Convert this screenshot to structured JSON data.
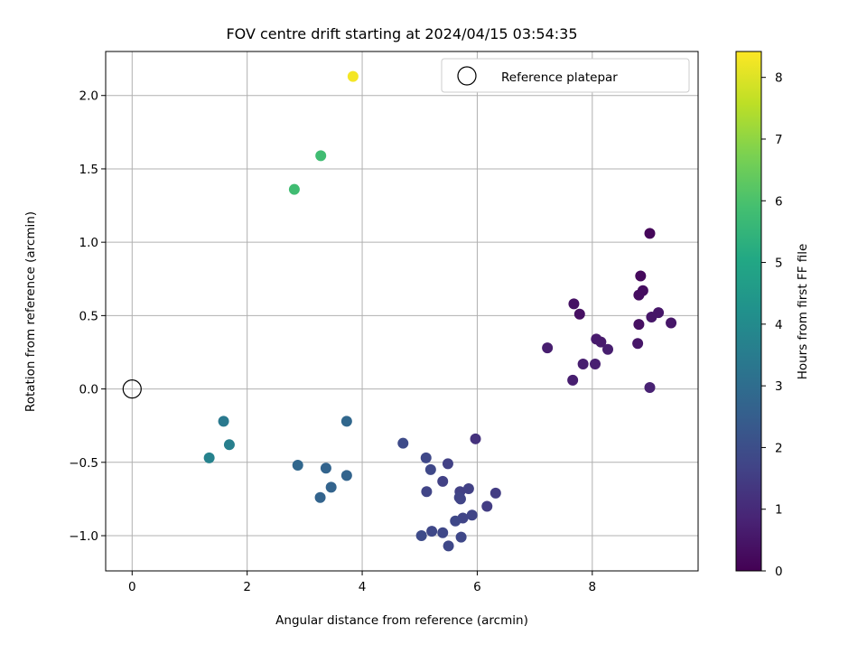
{
  "chart_data": {
    "type": "scatter",
    "title": "FOV centre drift starting at 2024/04/15 03:54:35",
    "xlabel": "Angular distance from reference (arcmin)",
    "ylabel": "Rotation from reference (arcmin)",
    "xlim": [
      -0.46,
      9.84
    ],
    "ylim": [
      -1.24,
      2.3
    ],
    "xticks": [
      0,
      2,
      4,
      6,
      8
    ],
    "xtick_labels": [
      "0",
      "2",
      "4",
      "6",
      "8"
    ],
    "yticks": [
      -1.0,
      -0.5,
      0.0,
      0.5,
      1.0,
      1.5,
      2.0
    ],
    "ytick_labels": [
      "−1.0",
      "−0.5",
      "0.0",
      "0.5",
      "1.0",
      "1.5",
      "2.0"
    ],
    "grid": true,
    "legend": {
      "placement": "top-right",
      "entries": [
        "Reference platepar"
      ]
    },
    "reference": {
      "x": 0.0,
      "y": 0.0,
      "label": "Reference platepar"
    },
    "colorbar": {
      "label": "Hours from first FF file",
      "colormap": "viridis",
      "range": [
        0,
        8.42
      ],
      "ticks": [
        0,
        1,
        2,
        3,
        4,
        5,
        6,
        7,
        8
      ],
      "tick_labels": [
        "0",
        "1",
        "2",
        "3",
        "4",
        "5",
        "6",
        "7",
        "8"
      ]
    },
    "points": [
      {
        "x": 9.0,
        "y": 1.06,
        "c": 0.15
      },
      {
        "x": 8.84,
        "y": 0.77,
        "c": 0.2
      },
      {
        "x": 8.88,
        "y": 0.67,
        "c": 0.3
      },
      {
        "x": 8.81,
        "y": 0.64,
        "c": 0.3
      },
      {
        "x": 7.68,
        "y": 0.58,
        "c": 0.4
      },
      {
        "x": 7.78,
        "y": 0.51,
        "c": 0.35
      },
      {
        "x": 9.15,
        "y": 0.52,
        "c": 0.5
      },
      {
        "x": 9.03,
        "y": 0.49,
        "c": 0.5
      },
      {
        "x": 9.37,
        "y": 0.45,
        "c": 0.5
      },
      {
        "x": 8.81,
        "y": 0.44,
        "c": 0.35
      },
      {
        "x": 8.07,
        "y": 0.34,
        "c": 0.6
      },
      {
        "x": 8.15,
        "y": 0.32,
        "c": 0.6
      },
      {
        "x": 8.79,
        "y": 0.31,
        "c": 0.5
      },
      {
        "x": 7.22,
        "y": 0.28,
        "c": 0.7
      },
      {
        "x": 8.27,
        "y": 0.27,
        "c": 0.7
      },
      {
        "x": 7.84,
        "y": 0.17,
        "c": 0.7
      },
      {
        "x": 8.05,
        "y": 0.17,
        "c": 0.75
      },
      {
        "x": 7.66,
        "y": 0.06,
        "c": 0.7
      },
      {
        "x": 9.0,
        "y": 0.01,
        "c": 0.8
      },
      {
        "x": 5.97,
        "y": -0.34,
        "c": 1.2
      },
      {
        "x": 4.71,
        "y": -0.37,
        "c": 1.9
      },
      {
        "x": 5.11,
        "y": -0.47,
        "c": 1.8
      },
      {
        "x": 5.49,
        "y": -0.51,
        "c": 1.6
      },
      {
        "x": 5.19,
        "y": -0.55,
        "c": 1.8
      },
      {
        "x": 5.4,
        "y": -0.63,
        "c": 1.6
      },
      {
        "x": 5.12,
        "y": -0.7,
        "c": 1.7
      },
      {
        "x": 5.7,
        "y": -0.7,
        "c": 1.6
      },
      {
        "x": 5.85,
        "y": -0.68,
        "c": 1.6
      },
      {
        "x": 6.32,
        "y": -0.71,
        "c": 1.5
      },
      {
        "x": 5.69,
        "y": -0.74,
        "c": 1.7
      },
      {
        "x": 5.71,
        "y": -0.75,
        "c": 1.7
      },
      {
        "x": 6.17,
        "y": -0.8,
        "c": 1.5
      },
      {
        "x": 5.75,
        "y": -0.88,
        "c": 1.7
      },
      {
        "x": 5.91,
        "y": -0.86,
        "c": 1.7
      },
      {
        "x": 5.62,
        "y": -0.9,
        "c": 1.8
      },
      {
        "x": 5.21,
        "y": -0.97,
        "c": 1.8
      },
      {
        "x": 5.4,
        "y": -0.98,
        "c": 1.8
      },
      {
        "x": 5.03,
        "y": -1.0,
        "c": 1.9
      },
      {
        "x": 5.72,
        "y": -1.01,
        "c": 1.8
      },
      {
        "x": 5.5,
        "y": -1.07,
        "c": 1.8
      },
      {
        "x": 3.73,
        "y": -0.22,
        "c": 2.8
      },
      {
        "x": 2.88,
        "y": -0.52,
        "c": 2.8
      },
      {
        "x": 3.37,
        "y": -0.54,
        "c": 2.7
      },
      {
        "x": 3.73,
        "y": -0.59,
        "c": 2.7
      },
      {
        "x": 3.46,
        "y": -0.67,
        "c": 2.7
      },
      {
        "x": 3.27,
        "y": -0.74,
        "c": 2.7
      },
      {
        "x": 1.59,
        "y": -0.22,
        "c": 3.4
      },
      {
        "x": 1.69,
        "y": -0.38,
        "c": 3.6
      },
      {
        "x": 1.34,
        "y": -0.47,
        "c": 3.7
      },
      {
        "x": 2.82,
        "y": 1.36,
        "c": 5.8
      },
      {
        "x": 3.28,
        "y": 1.59,
        "c": 5.8
      },
      {
        "x": 3.84,
        "y": 2.13,
        "c": 8.3
      }
    ]
  }
}
